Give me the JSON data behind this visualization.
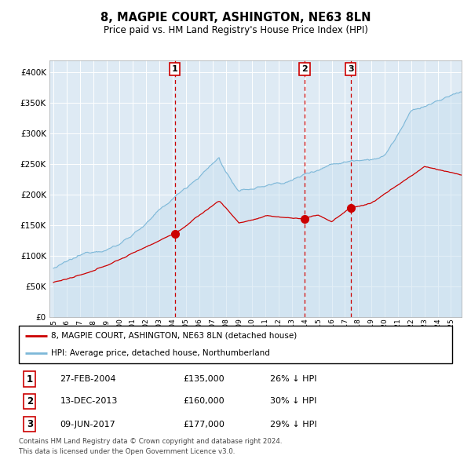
{
  "title": "8, MAGPIE COURT, ASHINGTON, NE63 8LN",
  "subtitle": "Price paid vs. HM Land Registry's House Price Index (HPI)",
  "hpi_color": "#7db8d8",
  "hpi_fill": "#c8dff0",
  "price_color": "#cc0000",
  "marker_color": "#cc0000",
  "bg_color": "#deeaf4",
  "grid_color": "#ffffff",
  "legend1": "8, MAGPIE COURT, ASHINGTON, NE63 8LN (detached house)",
  "legend2": "HPI: Average price, detached house, Northumberland",
  "transactions": [
    {
      "num": 1,
      "date": "27-FEB-2004",
      "price": 135000,
      "pct": "26%",
      "x_year": 2004.15
    },
    {
      "num": 2,
      "date": "13-DEC-2013",
      "price": 160000,
      "pct": "30%",
      "x_year": 2013.95
    },
    {
      "num": 3,
      "date": "09-JUN-2017",
      "price": 177000,
      "pct": "29%",
      "x_year": 2017.44
    }
  ],
  "footnote1": "Contains HM Land Registry data © Crown copyright and database right 2024.",
  "footnote2": "This data is licensed under the Open Government Licence v3.0.",
  "ylim": [
    0,
    420000
  ],
  "yticks": [
    0,
    50000,
    100000,
    150000,
    200000,
    250000,
    300000,
    350000,
    400000
  ],
  "xlim_start": 1994.7,
  "xlim_end": 2025.8
}
